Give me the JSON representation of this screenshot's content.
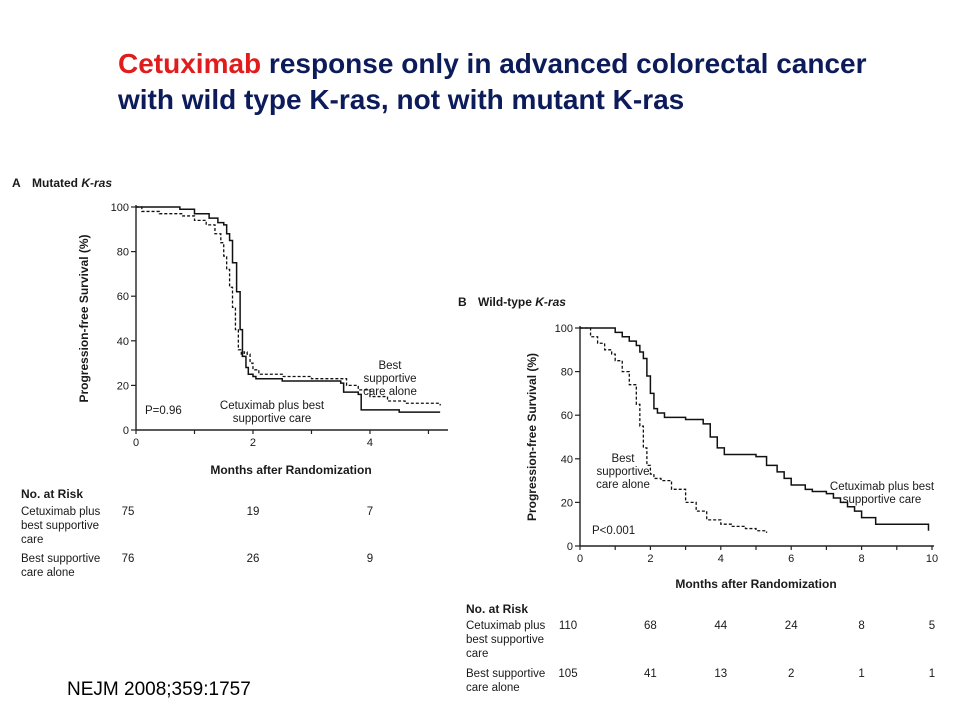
{
  "slide": {
    "title_highlight": "Cetuximab",
    "title_rest": " response only in advanced colorectal cancer with wild type K-ras, not with mutant K-ras",
    "citation": "NEJM 2008;359:1757",
    "colors": {
      "title": "#0c1b5a",
      "highlight": "#e01c1c"
    }
  },
  "chart_data": [
    {
      "type": "line",
      "panel_letter": "A",
      "title": "Mutated K-ras",
      "xlabel": "Months after Randomization",
      "ylabel": "Progression-free Survival (%)",
      "xlim": [
        0,
        5.3
      ],
      "ylim": [
        0,
        100
      ],
      "xticks": [
        0,
        2,
        4
      ],
      "yticks": [
        0,
        20,
        40,
        60,
        80,
        100
      ],
      "p_value": "P=0.96",
      "series": [
        {
          "name": "Cetuximab plus best supportive care",
          "style": "solid",
          "label_lines": [
            "Cetuximab plus best",
            "supportive care"
          ],
          "x": [
            0,
            0.7,
            0.75,
            0.95,
            1.0,
            1.2,
            1.25,
            1.35,
            1.4,
            1.5,
            1.55,
            1.6,
            1.65,
            1.72,
            1.78,
            1.82,
            1.88,
            1.92,
            2.0,
            2.05,
            2.5,
            3.2,
            3.5,
            3.55,
            3.8,
            3.85,
            4.5,
            5.2
          ],
          "y": [
            100,
            100,
            99,
            99,
            97,
            97,
            95,
            95,
            93,
            92,
            88,
            85,
            75,
            62,
            45,
            33,
            28,
            25,
            24,
            23,
            22,
            22,
            21,
            17,
            16,
            9,
            8,
            8
          ]
        },
        {
          "name": "Best supportive care alone",
          "style": "dashed",
          "label_lines": [
            "Best",
            "supportive",
            "care alone"
          ],
          "x": [
            0,
            0.1,
            0.4,
            0.8,
            1.0,
            1.2,
            1.35,
            1.45,
            1.5,
            1.55,
            1.6,
            1.65,
            1.7,
            1.75,
            1.8,
            1.85,
            1.9,
            1.95,
            2.0,
            2.1,
            2.5,
            3.0,
            3.6,
            3.8,
            4.0,
            4.3,
            4.6,
            5.2
          ],
          "y": [
            100,
            98,
            97,
            96,
            94,
            92,
            88,
            84,
            78,
            72,
            64,
            55,
            45,
            36,
            33,
            35,
            34,
            30,
            27,
            25,
            24,
            23,
            20,
            18,
            15,
            13,
            12,
            11
          ]
        }
      ],
      "risk_table": {
        "header": "No. at Risk",
        "rows": [
          {
            "label_lines": [
              "Cetuximab plus",
              "best supportive",
              "care"
            ],
            "values": [
              "75",
              "19",
              "7"
            ]
          },
          {
            "label_lines": [
              "Best supportive",
              "care alone"
            ],
            "values": [
              "76",
              "26",
              "9"
            ]
          }
        ]
      }
    },
    {
      "type": "line",
      "panel_letter": "B",
      "title": "Wild-type K-ras",
      "xlabel": "Months after Randomization",
      "ylabel": "Progression-free Survival (%)",
      "xlim": [
        0,
        10
      ],
      "ylim": [
        0,
        100
      ],
      "xticks": [
        0,
        2,
        4,
        6,
        8,
        10
      ],
      "yticks": [
        0,
        20,
        40,
        60,
        80,
        100
      ],
      "p_value": "P<0.001",
      "series": [
        {
          "name": "Cetuximab plus best supportive care",
          "style": "solid",
          "label_lines": [
            "Cetuximab plus best",
            "supportive care"
          ],
          "x": [
            0,
            0.9,
            1.0,
            1.2,
            1.4,
            1.6,
            1.7,
            1.8,
            1.9,
            2.0,
            2.1,
            2.2,
            2.4,
            3.0,
            3.3,
            3.5,
            3.7,
            3.9,
            4.1,
            5.0,
            5.3,
            5.6,
            5.8,
            6.0,
            6.4,
            6.6,
            7.0,
            7.2,
            7.4,
            7.6,
            7.8,
            8.0,
            8.4,
            9.8,
            9.9
          ],
          "y": [
            100,
            100,
            98,
            96,
            94,
            92,
            89,
            86,
            78,
            70,
            63,
            61,
            59,
            58,
            58,
            56,
            50,
            45,
            42,
            41,
            37,
            34,
            31,
            28,
            26,
            25,
            24,
            22,
            20,
            18,
            16,
            13,
            10,
            10,
            7
          ]
        },
        {
          "name": "Best supportive care alone",
          "style": "dashed",
          "label_lines": [
            "Best",
            "supportive",
            "care alone"
          ],
          "x": [
            0,
            0.3,
            0.5,
            0.7,
            0.9,
            1.0,
            1.2,
            1.4,
            1.6,
            1.7,
            1.8,
            1.9,
            2.0,
            2.1,
            2.3,
            2.6,
            3.0,
            3.3,
            3.6,
            4.0,
            4.3,
            4.7,
            5.0,
            5.3
          ],
          "y": [
            100,
            96,
            93,
            90,
            88,
            85,
            80,
            74,
            65,
            55,
            45,
            37,
            33,
            31,
            30,
            26,
            20,
            16,
            12,
            10,
            9,
            8,
            7,
            6
          ]
        }
      ],
      "risk_table": {
        "header": "No. at Risk",
        "rows": [
          {
            "label_lines": [
              "Cetuximab plus",
              "best supportive",
              "care"
            ],
            "values": [
              "110",
              "68",
              "44",
              "24",
              "8",
              "5"
            ]
          },
          {
            "label_lines": [
              "Best supportive",
              "care alone"
            ],
            "values": [
              "105",
              "41",
              "13",
              "2",
              "1",
              "1"
            ]
          }
        ]
      }
    }
  ]
}
